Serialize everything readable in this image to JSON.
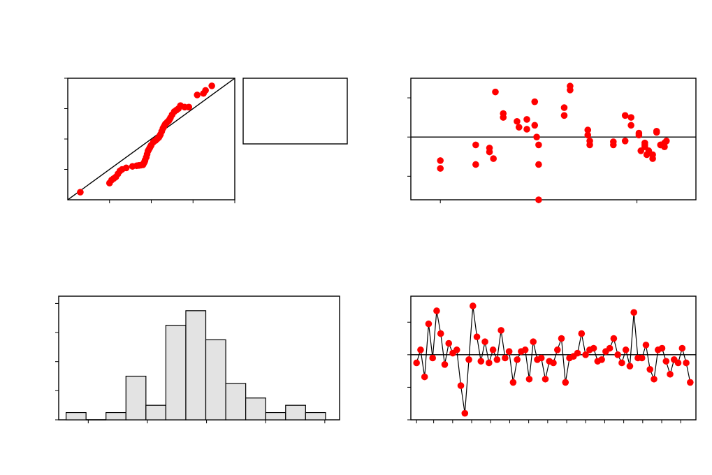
{
  "chart_data": [
    {
      "type": "scatter",
      "subtype": "normal-probability-plot",
      "xlim": [
        -3,
        1
      ],
      "ylim": [
        -3,
        1
      ],
      "ticks": [
        -2,
        -1,
        0,
        1
      ],
      "reference_line": {
        "x": [
          -3,
          1
        ],
        "y": [
          -3,
          1
        ]
      },
      "x": [
        -2.7,
        -2.0,
        -1.95,
        -1.9,
        -1.85,
        -1.8,
        -1.75,
        -1.7,
        -1.6,
        -1.45,
        -1.35,
        -1.3,
        -1.25,
        -1.2,
        -1.18,
        -1.16,
        -1.15,
        -1.12,
        -1.1,
        -1.08,
        -1.06,
        -1.04,
        -1.02,
        -1.0,
        -0.95,
        -0.9,
        -0.86,
        -0.82,
        -0.8,
        -0.78,
        -0.75,
        -0.72,
        -0.7,
        -0.68,
        -0.66,
        -0.64,
        -0.62,
        -0.6,
        -0.58,
        -0.56,
        -0.54,
        -0.5,
        -0.45,
        -0.4,
        -0.35,
        -0.3,
        -0.2,
        -0.1,
        0.1,
        0.25,
        0.3,
        0.45
      ],
      "y": [
        -2.75,
        -2.45,
        -2.35,
        -2.3,
        -2.25,
        -2.15,
        -2.05,
        -2.0,
        -1.95,
        -1.9,
        -1.88,
        -1.87,
        -1.86,
        -1.85,
        -1.8,
        -1.75,
        -1.7,
        -1.6,
        -1.5,
        -1.4,
        -1.35,
        -1.3,
        -1.25,
        -1.2,
        -1.1,
        -1.05,
        -1.0,
        -0.95,
        -0.9,
        -0.85,
        -0.75,
        -0.65,
        -0.6,
        -0.55,
        -0.5,
        -0.48,
        -0.45,
        -0.42,
        -0.4,
        -0.35,
        -0.3,
        -0.2,
        -0.1,
        -0.05,
        0.0,
        0.1,
        0.05,
        0.05,
        0.45,
        0.5,
        0.6,
        0.75
      ],
      "point_color": "#ff0000",
      "line_color": "#000000"
    },
    {
      "type": "scatter",
      "subtype": "residuals-versus-fits",
      "xlim": [
        -1.25,
        0.2
      ],
      "ylim": [
        -1.6,
        1.5
      ],
      "xticks": [
        -1.1,
        -0.6,
        -0.1
      ],
      "yticks": [
        -1,
        0,
        1
      ],
      "reference_y": 0,
      "x": [
        -1.1,
        -1.1,
        -0.92,
        -0.92,
        -0.85,
        -0.85,
        -0.83,
        -0.82,
        -0.78,
        -0.78,
        -0.71,
        -0.7,
        -0.66,
        -0.66,
        -0.62,
        -0.62,
        -0.61,
        -0.6,
        -0.6,
        -0.6,
        -0.47,
        -0.47,
        -0.44,
        -0.44,
        -0.35,
        -0.35,
        -0.34,
        -0.34,
        -0.22,
        -0.22,
        -0.16,
        -0.16,
        -0.13,
        -0.13,
        -0.09,
        -0.09,
        -0.08,
        -0.06,
        -0.06,
        -0.06,
        -0.05,
        -0.04,
        -0.02,
        -0.02,
        0.0,
        0.0,
        0.02,
        0.02,
        0.04,
        0.04,
        0.05
      ],
      "y": [
        -0.6,
        -0.8,
        -0.2,
        -0.7,
        -0.28,
        -0.38,
        -0.55,
        1.15,
        0.6,
        0.5,
        0.4,
        0.25,
        0.45,
        0.2,
        0.3,
        0.9,
        0.0,
        -1.6,
        -0.2,
        -0.7,
        0.55,
        0.75,
        1.3,
        1.2,
        0.05,
        0.18,
        -0.1,
        -0.2,
        -0.12,
        -0.2,
        -0.1,
        0.55,
        0.5,
        0.3,
        0.1,
        0.05,
        -0.35,
        -0.2,
        -0.15,
        -0.25,
        -0.45,
        -0.35,
        -0.45,
        -0.55,
        0.15,
        0.12,
        -0.2,
        -0.2,
        -0.25,
        -0.15,
        -0.1
      ],
      "point_color": "#ff0000",
      "line_color": "#000000"
    },
    {
      "type": "bar",
      "subtype": "histogram",
      "xlim": [
        -2.8,
        1.0
      ],
      "ylim": [
        0,
        17
      ],
      "xticks": [
        -2.4,
        -1.6,
        -0.8,
        0.0,
        0.8
      ],
      "yticks": [
        0,
        4,
        8,
        12,
        16
      ],
      "bin_edges": [
        -2.7,
        -2.43,
        -2.16,
        -1.89,
        -1.62,
        -1.35,
        -1.08,
        -0.81,
        -0.54,
        -0.27,
        0.0,
        0.27,
        0.54,
        0.81
      ],
      "values": [
        1,
        0,
        1,
        6,
        2,
        13,
        15,
        11,
        5,
        3,
        1,
        2,
        1
      ],
      "fill_color": "#e3e3e3",
      "edge_color": "#000000"
    },
    {
      "type": "line",
      "subtype": "residuals-versus-order",
      "xlim": [
        -2,
        148
      ],
      "ylim": [
        -2.0,
        1.8
      ],
      "xticks": [
        1,
        10,
        20,
        30,
        40,
        50,
        60,
        70,
        80,
        90,
        100,
        110,
        120,
        130,
        140
      ],
      "yticks": [
        -2,
        -1,
        0,
        1
      ],
      "reference_y": 0,
      "y": [
        -0.25,
        0.15,
        -0.68,
        0.95,
        -0.1,
        1.35,
        0.65,
        -0.3,
        0.35,
        0.05,
        0.15,
        -0.95,
        -1.8,
        -0.15,
        1.5,
        0.55,
        -0.2,
        0.4,
        -0.25,
        0.15,
        -0.15,
        0.75,
        -0.1,
        0.1,
        -0.85,
        -0.15,
        0.1,
        0.15,
        -0.75,
        0.4,
        -0.15,
        -0.1,
        -0.75,
        -0.2,
        -0.25,
        0.15,
        0.5,
        -0.85,
        -0.1,
        -0.05,
        0.05,
        0.65,
        0.0,
        0.15,
        0.2,
        -0.2,
        -0.15,
        0.1,
        0.2,
        0.5,
        0.0,
        -0.25,
        0.15,
        -0.35,
        1.3,
        -0.1,
        -0.1,
        0.3,
        -0.45,
        -0.75,
        0.15,
        0.2,
        -0.2,
        -0.6,
        -0.15,
        -0.25,
        0.2,
        -0.25,
        -0.85
      ],
      "point_color": "#ff0000",
      "line_color": "#000000"
    }
  ]
}
